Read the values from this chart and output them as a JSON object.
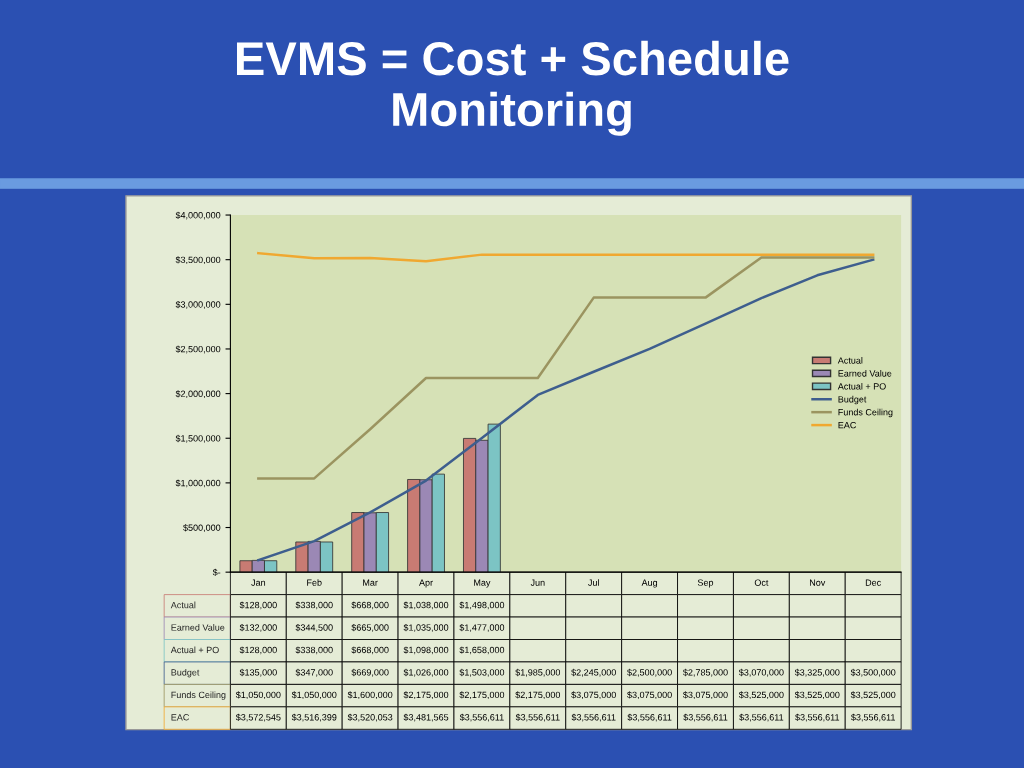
{
  "chart_data": {
    "type": "bar",
    "title": "EVMS = Cost + Schedule\nMonitoring",
    "categories": [
      "Jan",
      "Feb",
      "Mar",
      "Apr",
      "May",
      "Jun",
      "Jul",
      "Aug",
      "Sep",
      "Oct",
      "Nov",
      "Dec"
    ],
    "series": [
      {
        "name": "Actual",
        "color": "#c87b73",
        "values": [
          128000,
          338000,
          668000,
          1038000,
          1498000,
          null,
          null,
          null,
          null,
          null,
          null,
          null
        ],
        "value_labels": [
          "$128,000",
          "$338,000",
          "$668,000",
          "$1,038,000",
          "$1,498,000",
          null,
          null,
          null,
          null,
          null,
          null,
          null
        ]
      },
      {
        "name": "Earned Value",
        "color": "#9b88b5",
        "values": [
          132000,
          344500,
          665000,
          1035000,
          1477000,
          null,
          null,
          null,
          null,
          null,
          null,
          null
        ],
        "value_labels": [
          "$132,000",
          "$344,500",
          "$665,000",
          "$1,035,000",
          "$1,477,000",
          null,
          null,
          null,
          null,
          null,
          null,
          null
        ]
      },
      {
        "name": "Actual + PO",
        "color": "#7cc4c4",
        "values": [
          128000,
          338000,
          668000,
          1098000,
          1658000,
          null,
          null,
          null,
          null,
          null,
          null,
          null
        ],
        "value_labels": [
          "$128,000",
          "$338,000",
          "$668,000",
          "$1,098,000",
          "$1,658,000",
          null,
          null,
          null,
          null,
          null,
          null,
          null
        ]
      },
      {
        "name": "Budget",
        "type": "line",
        "color": "#3e5e8e",
        "values": [
          135000,
          347000,
          669000,
          1026000,
          1503000,
          1985000,
          2245000,
          2500000,
          2785000,
          3070000,
          3325000,
          3500000
        ],
        "value_labels": [
          "$135,000",
          "$347,000",
          "$669,000",
          "$1,026,000",
          "$1,503,000",
          "$1,985,000",
          "$2,245,000",
          "$2,500,000",
          "$2,785,000",
          "$3,070,000",
          "$3,325,000",
          "$3,500,000"
        ]
      },
      {
        "name": "Funds Ceiling",
        "type": "line",
        "color": "#9b9460",
        "values": [
          1050000,
          1050000,
          1600000,
          2175000,
          2175000,
          2175000,
          3075000,
          3075000,
          3075000,
          3525000,
          3525000,
          3525000
        ],
        "value_labels": [
          "$1,050,000",
          "$1,050,000",
          "$1,600,000",
          "$2,175,000",
          "$2,175,000",
          "$2,175,000",
          "$3,075,000",
          "$3,075,000",
          "$3,075,000",
          "$3,525,000",
          "$3,525,000",
          "$3,525,000"
        ]
      },
      {
        "name": "EAC",
        "type": "line",
        "color": "#f0a830",
        "values": [
          3572545,
          3516399,
          3520053,
          3481565,
          3556611,
          3556611,
          3556611,
          3556611,
          3556611,
          3556611,
          3556611,
          3556611
        ],
        "value_labels": [
          "$3,572,545",
          "$3,516,399",
          "$3,520,053",
          "$3,481,565",
          "$3,556,611",
          "$3,556,611",
          "$3,556,611",
          "$3,556,611",
          "$3,556,611",
          "$3,556,611",
          "$3,556,611",
          "$3,556,611"
        ]
      }
    ],
    "ylim": [
      0,
      4000000
    ],
    "yticks": [
      {
        "value": 0,
        "label": "$-"
      },
      {
        "value": 500000,
        "label": "$500,000"
      },
      {
        "value": 1000000,
        "label": "$1,000,000"
      },
      {
        "value": 1500000,
        "label": "$1,500,000"
      },
      {
        "value": 2000000,
        "label": "$2,000,000"
      },
      {
        "value": 2500000,
        "label": "$2,500,000"
      },
      {
        "value": 3000000,
        "label": "$3,000,000"
      },
      {
        "value": 3500000,
        "label": "$3,500,000"
      },
      {
        "value": 4000000,
        "label": "$4,000,000"
      }
    ],
    "legend": "right"
  }
}
